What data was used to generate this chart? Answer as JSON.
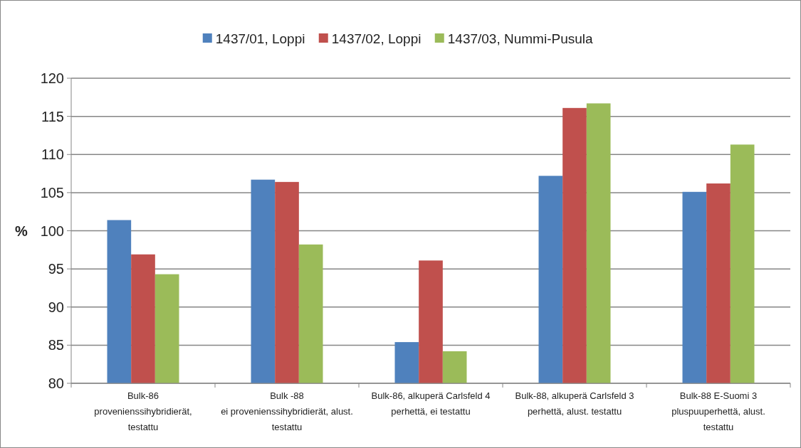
{
  "chart_data": {
    "type": "bar",
    "ylabel": "%",
    "categories": [
      "Bulk-86\nprovenienssihybridierät,\ntestattu",
      "Bulk -88\nei provenienssihybridierät, alust.\ntestattu",
      "Bulk-86, alkuperä Carlsfeld 4\nperhettä, ei testattu",
      "Bulk-88, alkuperä Carlsfeld 3\nperhettä, alust. testattu",
      "Bulk-88 E-Suomi 3\npluspuuperhettä, alust.\ntestattu"
    ],
    "series": [
      {
        "name": "1437/01, Loppi",
        "color": "#4f81bd",
        "values": [
          101.4,
          106.7,
          85.4,
          107.2,
          105.1
        ]
      },
      {
        "name": "1437/02, Loppi",
        "color": "#c0504d",
        "values": [
          96.9,
          106.4,
          96.1,
          116.1,
          106.2
        ]
      },
      {
        "name": "1437/03, Nummi-Pusula",
        "color": "#9bbb59",
        "values": [
          94.3,
          98.2,
          84.2,
          116.7,
          111.3
        ]
      }
    ],
    "ylim": [
      80,
      120
    ],
    "yticks": [
      80,
      85,
      90,
      95,
      100,
      105,
      110,
      115,
      120
    ],
    "grid": "y",
    "legend": "top"
  }
}
